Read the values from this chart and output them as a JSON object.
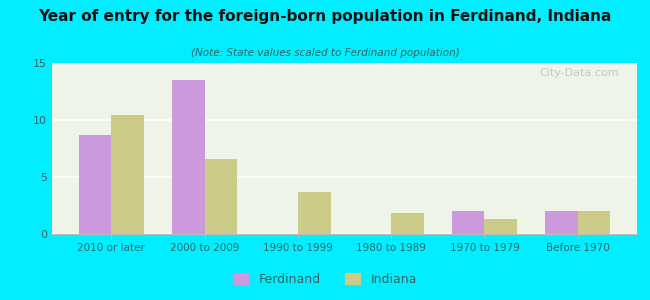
{
  "title": "Year of entry for the foreign-born population in Ferdinand, Indiana",
  "subtitle": "(Note: State values scaled to Ferdinand population)",
  "categories": [
    "2010 or later",
    "2000 to 2009",
    "1990 to 1999",
    "1980 to 1989",
    "1970 to 1979",
    "Before 1970"
  ],
  "ferdinand_values": [
    8.7,
    13.5,
    0,
    0,
    2.0,
    2.0
  ],
  "indiana_values": [
    10.4,
    6.6,
    3.7,
    1.8,
    1.3,
    2.0
  ],
  "ferdinand_color": "#cc99dd",
  "indiana_color": "#cccc88",
  "bg_outer": "#00eeff",
  "bg_chart": "#eef5e8",
  "ylim": [
    0,
    15
  ],
  "yticks": [
    0,
    5,
    10,
    15
  ],
  "bar_width": 0.35,
  "legend_labels": [
    "Ferdinand",
    "Indiana"
  ],
  "title_color": "#111111",
  "subtitle_color": "#336666",
  "tick_color": "#336666"
}
